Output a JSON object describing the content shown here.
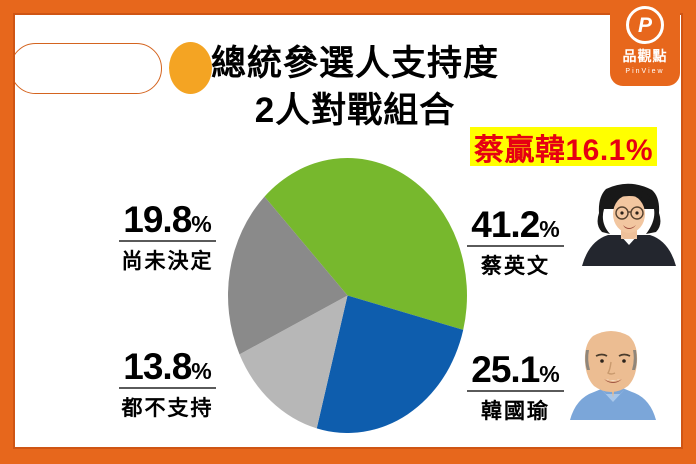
{
  "brand": {
    "monogram": "P",
    "name_cn": "品觀點",
    "name_en": "PinView"
  },
  "title": {
    "line1": "總統參選人支持度",
    "line2": "2人對戰組合"
  },
  "highlight": {
    "text": "蔡贏韓16.1%"
  },
  "ui": {
    "percent_sign": "%"
  },
  "colors": {
    "frame_orange": "#e7671c",
    "frame_orange_dark": "#cf5514",
    "accent_yellow_dot": "#f4a423",
    "highlight_bg": "#ffff00",
    "highlight_text": "#e60012"
  },
  "chart_data": {
    "type": "pie",
    "title": "總統參選人支持度 2人對戰組合",
    "annotation": "蔡贏韓16.1%",
    "start_angle_deg": -44,
    "clockwise": true,
    "legend_position": "callout-labels",
    "slices": [
      {
        "label": "蔡英文",
        "value": 41.2,
        "color": "#77b82d"
      },
      {
        "label": "韓國瑜",
        "value": 25.1,
        "color": "#0e5dad"
      },
      {
        "label": "都不支持",
        "value": 13.8,
        "color": "#b7b7b7"
      },
      {
        "label": "尚未決定",
        "value": 19.8,
        "color": "#8a8a8a"
      }
    ]
  }
}
